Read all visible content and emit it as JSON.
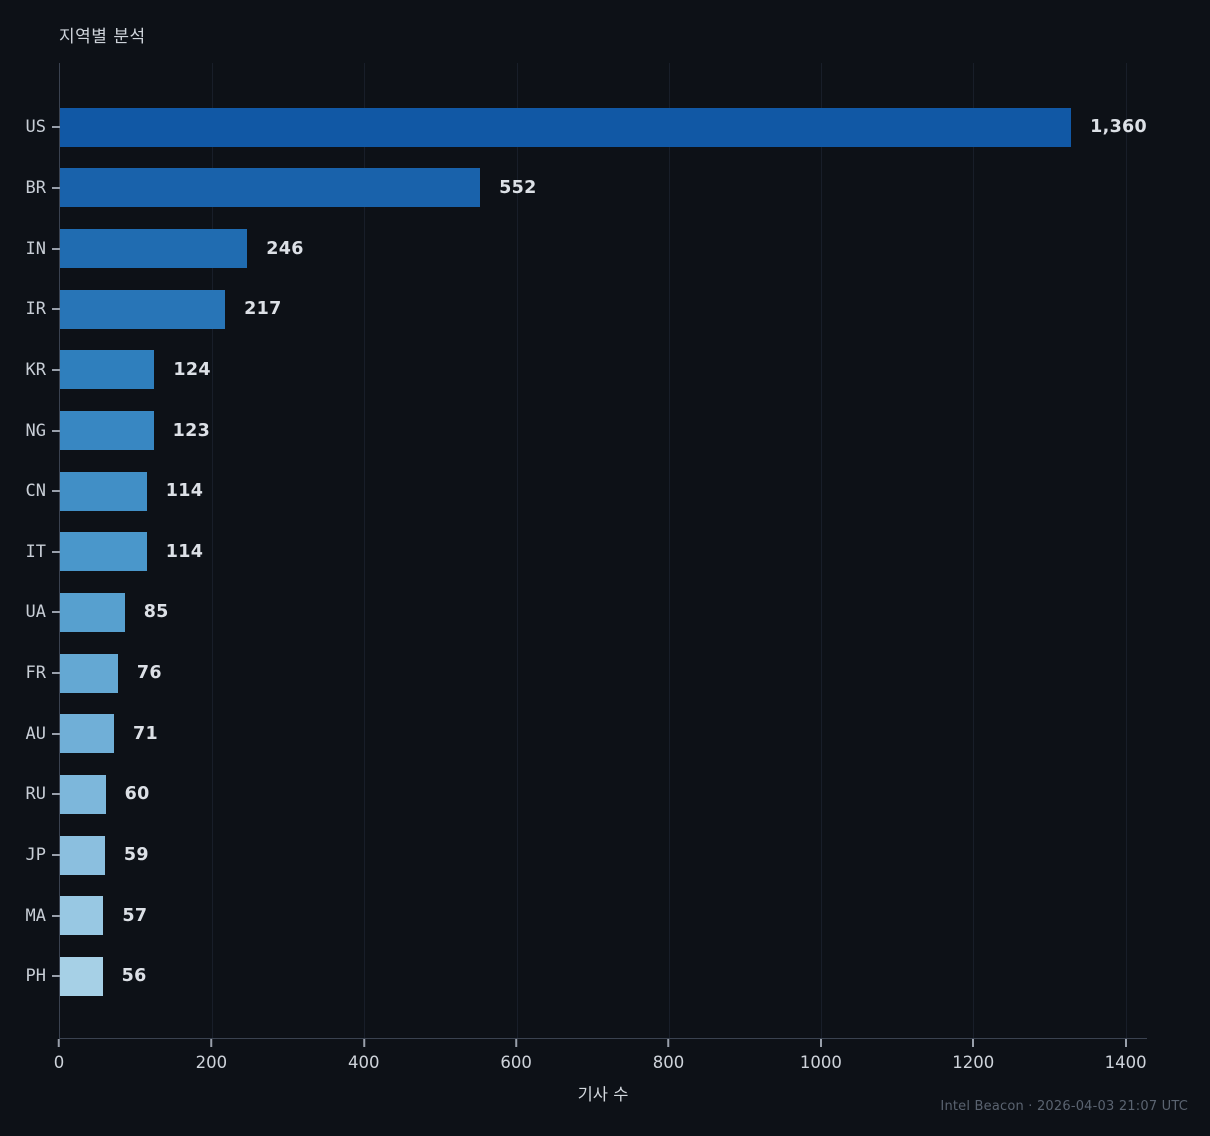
{
  "title": "지역별 분석",
  "xlabel": "기사 수",
  "footer": "Intel Beacon · 2026-04-03 21:07 UTC",
  "colors": {
    "background": "#0d1117",
    "grid": "#181e29",
    "spine": "#3a4250",
    "tick": "#99a0ab",
    "text": "#ced3da",
    "value_label": "#dce0e6",
    "footer_text": "#5a6370"
  },
  "chart_data": {
    "type": "bar",
    "orientation": "horizontal",
    "title": "지역별 분석",
    "xlabel": "기사 수",
    "ylabel": "",
    "categories": [
      "US",
      "BR",
      "IN",
      "IR",
      "KR",
      "NG",
      "CN",
      "IT",
      "UA",
      "FR",
      "AU",
      "RU",
      "JP",
      "MA",
      "PH"
    ],
    "values": [
      1360,
      552,
      246,
      217,
      124,
      123,
      114,
      114,
      85,
      76,
      71,
      60,
      59,
      57,
      56
    ],
    "value_labels": [
      "1,360",
      "552",
      "246",
      "217",
      "124",
      "123",
      "114",
      "114",
      "85",
      "76",
      "71",
      "60",
      "59",
      "57",
      "56"
    ],
    "bar_colors": [
      "#1158a5",
      "#1962ab",
      "#206cb1",
      "#2875b7",
      "#2f7fbd",
      "#3887c2",
      "#418fc6",
      "#4a97cb",
      "#57a0cf",
      "#64a8d3",
      "#70afd7",
      "#7db7db",
      "#8bbfdf",
      "#98c8e3",
      "#a6d0e6"
    ],
    "xlim": [
      0,
      1428
    ],
    "xticks": [
      0,
      200,
      400,
      600,
      800,
      1000,
      1200,
      1400
    ],
    "xtick_labels": [
      "0",
      "200",
      "400",
      "600",
      "800",
      "1000",
      "1200",
      "1400"
    ],
    "grid": "vertical",
    "legend": "none",
    "sorted": "descending"
  }
}
